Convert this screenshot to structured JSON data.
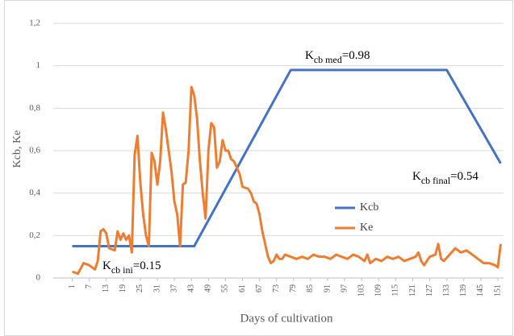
{
  "chart_data": {
    "type": "line",
    "xlabel": "Days of cultivation",
    "ylabel": "Kcb, Ke",
    "xlim": [
      0,
      153
    ],
    "xticks": [
      1,
      7,
      13,
      19,
      25,
      31,
      37,
      43,
      49,
      55,
      61,
      67,
      73,
      79,
      85,
      91,
      97,
      103,
      109,
      115,
      121,
      127,
      133,
      139,
      145,
      151
    ],
    "ylim": [
      0,
      1.2
    ],
    "yticks": [
      0,
      {
        "value": 0.2,
        "label": "0,2"
      },
      {
        "value": 0.4,
        "label": "0,4"
      },
      {
        "value": 0.6,
        "label": "0,6"
      },
      {
        "value": 0.8,
        "label": "0,8"
      },
      1,
      {
        "value": 1.2,
        "label": "1,2"
      }
    ],
    "grid": true,
    "legend": "center-right",
    "series": [
      {
        "name": "Kcb",
        "color": "#4472c4",
        "x": [
          1,
          44,
          78,
          133,
          152
        ],
        "values": [
          0.15,
          0.15,
          0.98,
          0.98,
          0.54
        ]
      },
      {
        "name": "Ke",
        "color": "#ed7d31",
        "x": [
          1,
          3,
          5,
          7,
          9,
          10,
          11,
          12,
          13,
          14,
          16,
          17,
          18,
          19,
          20,
          21,
          22,
          23,
          24,
          25,
          26,
          27,
          28,
          29,
          30,
          31,
          32,
          33,
          34,
          35,
          36,
          37,
          38,
          39,
          40,
          41,
          42,
          43,
          44,
          45,
          46,
          47,
          48,
          49,
          50,
          51,
          52,
          53,
          54,
          55,
          56,
          57,
          58,
          59,
          60,
          61,
          63,
          64,
          65,
          66,
          67,
          68,
          69,
          70,
          71,
          72,
          73,
          74,
          75,
          76,
          78,
          80,
          82,
          84,
          86,
          88,
          90,
          92,
          94,
          96,
          98,
          100,
          102,
          104,
          105,
          106,
          108,
          110,
          112,
          114,
          116,
          118,
          120,
          122,
          123,
          124,
          125,
          127,
          129,
          130,
          131,
          132,
          134,
          136,
          138,
          140,
          142,
          144,
          146,
          148,
          150,
          151,
          152
        ],
        "values": [
          0.03,
          0.02,
          0.07,
          0.06,
          0.04,
          0.08,
          0.22,
          0.23,
          0.21,
          0.14,
          0.13,
          0.22,
          0.18,
          0.21,
          0.18,
          0.2,
          0.12,
          0.58,
          0.67,
          0.45,
          0.3,
          0.2,
          0.15,
          0.59,
          0.55,
          0.44,
          0.55,
          0.78,
          0.7,
          0.6,
          0.5,
          0.36,
          0.3,
          0.15,
          0.44,
          0.45,
          0.6,
          0.9,
          0.86,
          0.75,
          0.55,
          0.4,
          0.28,
          0.6,
          0.73,
          0.71,
          0.52,
          0.55,
          0.65,
          0.6,
          0.6,
          0.56,
          0.55,
          0.52,
          0.49,
          0.43,
          0.42,
          0.4,
          0.36,
          0.35,
          0.3,
          0.22,
          0.16,
          0.1,
          0.07,
          0.08,
          0.11,
          0.09,
          0.09,
          0.11,
          0.1,
          0.09,
          0.1,
          0.09,
          0.11,
          0.1,
          0.1,
          0.09,
          0.11,
          0.1,
          0.09,
          0.11,
          0.1,
          0.08,
          0.11,
          0.07,
          0.09,
          0.08,
          0.1,
          0.09,
          0.1,
          0.08,
          0.09,
          0.1,
          0.12,
          0.08,
          0.06,
          0.1,
          0.11,
          0.16,
          0.09,
          0.08,
          0.11,
          0.14,
          0.12,
          0.13,
          0.11,
          0.09,
          0.07,
          0.07,
          0.06,
          0.05,
          0.16
        ]
      }
    ],
    "annotations": [
      {
        "text": "K",
        "sub": "cb med",
        "suffix": "=0.98"
      },
      {
        "text": "K",
        "sub": "cb ini",
        "suffix": "=0.15"
      },
      {
        "text": "K",
        "sub": "cb final",
        "suffix": "=0.54"
      }
    ]
  }
}
